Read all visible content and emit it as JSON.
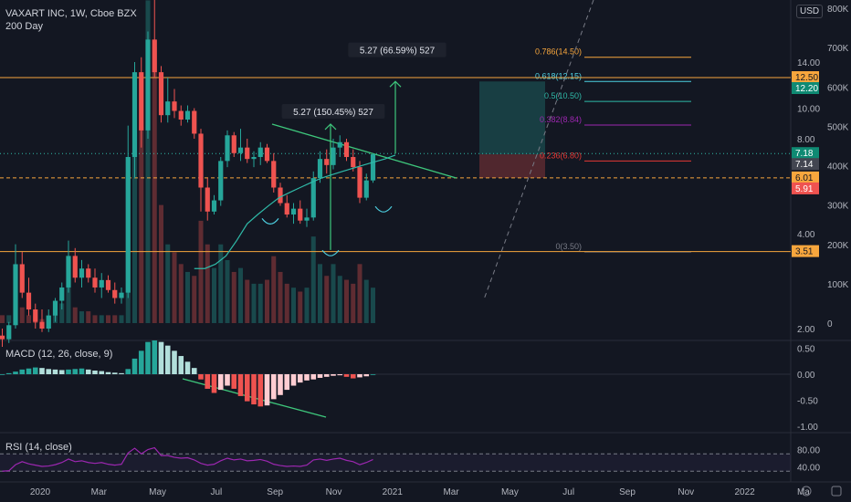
{
  "header": {
    "symbol_line": "VAXART INC, 1W, Cboe BZX",
    "ma_label": "200 Day",
    "currency": "USD"
  },
  "macd_panel": {
    "label": "MACD (12, 26, close, 9)"
  },
  "rsi_panel": {
    "label": "RSI (14, close)"
  },
  "colors": {
    "background": "#131722",
    "up": "#26a69a",
    "down": "#ef5350",
    "orange": "#f7a63d",
    "teal": "#2fbaa8",
    "purple": "#9c27b0",
    "red_fib": "#e53935",
    "cyan": "#4dd0e1",
    "macd_light_up": "#b2dfdb",
    "macd_light_down": "#ffcdd2"
  },
  "chart_data": [
    {
      "type": "candlestick",
      "title": "VAXART INC, 1W, Cboe BZX",
      "y_scale": "log",
      "x_ticks": [
        "2020",
        "Mar",
        "May",
        "Jul",
        "Sep",
        "Nov",
        "2021",
        "Mar",
        "May",
        "Jul",
        "Sep",
        "Nov",
        "2022",
        "Ma"
      ],
      "price_ticks": [
        "14.00",
        "10.00",
        "8.00",
        "4.00",
        "2.00"
      ],
      "volume_ticks": [
        "800K",
        "700K",
        "600K",
        "500K",
        "400K",
        "300K",
        "200K",
        "100K",
        "0"
      ],
      "price_labels": [
        {
          "text": "12.50",
          "value": 12.5,
          "style": "orange"
        },
        {
          "text": "12.20",
          "value": 12.2,
          "style": "teal"
        },
        {
          "text": "7.18",
          "value": 7.18,
          "style": "teal"
        },
        {
          "text": "7.14",
          "value": 7.14,
          "style": "gray"
        },
        {
          "text": "6.01",
          "value": 6.01,
          "style": "orange-fill"
        },
        {
          "text": "5.91",
          "value": 5.91,
          "style": "red"
        },
        {
          "text": "3.51",
          "value": 3.51,
          "style": "orange-fill"
        }
      ],
      "horizontal_lines": [
        {
          "value": 12.5,
          "style": "orange-solid"
        },
        {
          "value": 3.51,
          "style": "orange-solid"
        },
        {
          "value": 6.01,
          "style": "orange-dashed"
        },
        {
          "value": 7.18,
          "style": "teal-dotted"
        }
      ],
      "fib_levels": [
        {
          "label": "0.786(14.50)",
          "value": 14.5,
          "color": "#f7a63d"
        },
        {
          "label": "0.618(12.15)",
          "value": 12.15,
          "color": "#4dd0e1"
        },
        {
          "label": "0.5(10.50)",
          "value": 10.5,
          "color": "#2fbaa8"
        },
        {
          "label": "0.382(8.84)",
          "value": 8.84,
          "color": "#9c27b0"
        },
        {
          "label": "0.236(6.80)",
          "value": 6.8,
          "color": "#e53935"
        },
        {
          "label": "0(3.50)",
          "value": 3.5,
          "color": "#787b86"
        }
      ],
      "annotations": [
        {
          "text": "5.27 (150.45%) 527"
        },
        {
          "text": "5.27 (66.59%) 527"
        }
      ],
      "candles": [
        {
          "o": 1.9,
          "h": 2.0,
          "l": 1.75,
          "c": 1.85
        },
        {
          "o": 1.85,
          "h": 2.1,
          "l": 1.8,
          "c": 2.05
        },
        {
          "o": 2.05,
          "h": 3.7,
          "l": 2.0,
          "c": 3.2
        },
        {
          "o": 3.2,
          "h": 3.5,
          "l": 2.5,
          "c": 2.6
        },
        {
          "o": 2.6,
          "h": 2.9,
          "l": 2.2,
          "c": 2.3
        },
        {
          "o": 2.3,
          "h": 2.4,
          "l": 2.0,
          "c": 2.1
        },
        {
          "o": 2.1,
          "h": 2.3,
          "l": 1.95,
          "c": 2.0
        },
        {
          "o": 2.0,
          "h": 2.3,
          "l": 1.95,
          "c": 2.2
        },
        {
          "o": 2.2,
          "h": 2.5,
          "l": 2.1,
          "c": 2.45
        },
        {
          "o": 2.45,
          "h": 2.8,
          "l": 2.3,
          "c": 2.7
        },
        {
          "o": 2.7,
          "h": 3.8,
          "l": 2.6,
          "c": 3.4
        },
        {
          "o": 3.4,
          "h": 3.6,
          "l": 2.8,
          "c": 2.9
        },
        {
          "o": 2.9,
          "h": 3.3,
          "l": 2.7,
          "c": 3.1
        },
        {
          "o": 3.1,
          "h": 3.2,
          "l": 2.8,
          "c": 2.9
        },
        {
          "o": 2.9,
          "h": 3.1,
          "l": 2.6,
          "c": 2.7
        },
        {
          "o": 2.7,
          "h": 3.0,
          "l": 2.5,
          "c": 2.85
        },
        {
          "o": 2.85,
          "h": 2.95,
          "l": 2.6,
          "c": 2.65
        },
        {
          "o": 2.65,
          "h": 2.8,
          "l": 2.4,
          "c": 2.5
        },
        {
          "o": 2.5,
          "h": 2.7,
          "l": 2.4,
          "c": 2.6
        },
        {
          "o": 2.6,
          "h": 8.8,
          "l": 2.5,
          "c": 7.0
        },
        {
          "o": 7.0,
          "h": 14.0,
          "l": 6.0,
          "c": 13.0
        },
        {
          "o": 13.0,
          "h": 14.5,
          "l": 7.5,
          "c": 8.5
        },
        {
          "o": 8.5,
          "h": 17.5,
          "l": 8.0,
          "c": 16.5
        },
        {
          "o": 16.5,
          "h": 25.0,
          "l": 12.5,
          "c": 13.0
        },
        {
          "o": 13.0,
          "h": 13.6,
          "l": 9.0,
          "c": 9.5
        },
        {
          "o": 9.5,
          "h": 12.5,
          "l": 9.0,
          "c": 10.5
        },
        {
          "o": 10.5,
          "h": 11.5,
          "l": 9.3,
          "c": 9.8
        },
        {
          "o": 9.8,
          "h": 10.2,
          "l": 8.8,
          "c": 9.2
        },
        {
          "o": 9.2,
          "h": 10.2,
          "l": 9.0,
          "c": 9.8
        },
        {
          "o": 9.8,
          "h": 10.0,
          "l": 8.0,
          "c": 8.3
        },
        {
          "o": 8.3,
          "h": 8.6,
          "l": 4.7,
          "c": 5.6
        },
        {
          "o": 5.6,
          "h": 6.0,
          "l": 4.4,
          "c": 4.7
        },
        {
          "o": 4.7,
          "h": 5.3,
          "l": 4.6,
          "c": 5.1
        },
        {
          "o": 5.1,
          "h": 7.0,
          "l": 4.9,
          "c": 6.8
        },
        {
          "o": 6.8,
          "h": 8.5,
          "l": 6.5,
          "c": 8.2
        },
        {
          "o": 8.2,
          "h": 8.4,
          "l": 7.0,
          "c": 7.2
        },
        {
          "o": 7.2,
          "h": 8.6,
          "l": 6.8,
          "c": 7.5
        },
        {
          "o": 7.5,
          "h": 8.0,
          "l": 6.7,
          "c": 6.9
        },
        {
          "o": 6.9,
          "h": 7.3,
          "l": 6.5,
          "c": 7.0
        },
        {
          "o": 7.0,
          "h": 7.8,
          "l": 6.6,
          "c": 7.5
        },
        {
          "o": 7.5,
          "h": 7.7,
          "l": 6.7,
          "c": 6.8
        },
        {
          "o": 6.8,
          "h": 7.2,
          "l": 5.4,
          "c": 5.6
        },
        {
          "o": 5.6,
          "h": 5.8,
          "l": 4.9,
          "c": 5.0
        },
        {
          "o": 5.0,
          "h": 5.3,
          "l": 4.5,
          "c": 4.6
        },
        {
          "o": 4.6,
          "h": 5.0,
          "l": 4.3,
          "c": 4.8
        },
        {
          "o": 4.8,
          "h": 5.1,
          "l": 4.3,
          "c": 4.4
        },
        {
          "o": 4.4,
          "h": 4.8,
          "l": 4.2,
          "c": 4.5
        },
        {
          "o": 4.5,
          "h": 6.3,
          "l": 4.4,
          "c": 6.0
        },
        {
          "o": 6.0,
          "h": 7.3,
          "l": 5.8,
          "c": 6.9
        },
        {
          "o": 6.9,
          "h": 7.4,
          "l": 6.2,
          "c": 6.6
        },
        {
          "o": 6.6,
          "h": 8.0,
          "l": 6.4,
          "c": 7.5
        },
        {
          "o": 7.5,
          "h": 8.2,
          "l": 7.0,
          "c": 7.8
        },
        {
          "o": 7.8,
          "h": 8.0,
          "l": 6.8,
          "c": 7.0
        },
        {
          "o": 7.0,
          "h": 7.4,
          "l": 6.3,
          "c": 6.5
        },
        {
          "o": 6.5,
          "h": 6.8,
          "l": 5.0,
          "c": 5.2
        },
        {
          "o": 5.2,
          "h": 6.2,
          "l": 5.1,
          "c": 5.9
        },
        {
          "o": 5.9,
          "h": 7.2,
          "l": 5.8,
          "c": 7.14
        }
      ],
      "ma_200_day": [
        3.1,
        3.1,
        3.2,
        3.4,
        3.8,
        4.3,
        4.6,
        4.9,
        5.2,
        5.4,
        5.6,
        5.8,
        6.0,
        6.15,
        6.3,
        6.45,
        6.6,
        6.75,
        6.9,
        7.1
      ],
      "volume": [
        20,
        20,
        60,
        40,
        20,
        20,
        10,
        20,
        30,
        50,
        100,
        40,
        30,
        30,
        20,
        20,
        20,
        20,
        20,
        380,
        600,
        500,
        820,
        700,
        300,
        200,
        180,
        150,
        130,
        120,
        260,
        200,
        140,
        200,
        160,
        130,
        140,
        110,
        100,
        100,
        110,
        170,
        130,
        100,
        90,
        80,
        90,
        220,
        150,
        120,
        150,
        120,
        110,
        100,
        150,
        110,
        90
      ]
    },
    {
      "type": "bar",
      "title": "MACD (12, 26, close, 9)",
      "y_ticks": [
        "0.50",
        "0.00",
        "-0.50",
        "-1.00"
      ],
      "ylim": [
        -1.0,
        0.5
      ],
      "histogram": [
        0.0,
        0.02,
        0.05,
        0.09,
        0.11,
        0.13,
        0.12,
        0.1,
        0.09,
        0.08,
        0.09,
        0.1,
        0.11,
        0.09,
        0.07,
        0.06,
        0.04,
        0.03,
        0.02,
        0.1,
        0.3,
        0.45,
        0.62,
        0.65,
        0.62,
        0.55,
        0.45,
        0.35,
        0.24,
        0.12,
        -0.1,
        -0.28,
        -0.36,
        -0.3,
        -0.22,
        -0.28,
        -0.42,
        -0.52,
        -0.58,
        -0.62,
        -0.6,
        -0.48,
        -0.4,
        -0.3,
        -0.22,
        -0.16,
        -0.12,
        -0.1,
        -0.07,
        -0.05,
        -0.03,
        -0.02,
        -0.05,
        -0.08,
        -0.06,
        -0.04,
        0.0
      ]
    },
    {
      "type": "line",
      "title": "RSI (14, close)",
      "y_ticks": [
        "80.00",
        "40.00"
      ],
      "ylim": [
        20,
        100
      ],
      "values": [
        30,
        31,
        45,
        52,
        47,
        44,
        41,
        42,
        45,
        50,
        58,
        52,
        54,
        50,
        48,
        50,
        46,
        44,
        46,
        72,
        83,
        70,
        80,
        84,
        66,
        66,
        62,
        60,
        61,
        56,
        48,
        44,
        46,
        54,
        60,
        56,
        58,
        54,
        55,
        57,
        53,
        46,
        43,
        41,
        42,
        41,
        44,
        56,
        58,
        55,
        58,
        60,
        55,
        52,
        45,
        50,
        57
      ]
    }
  ]
}
